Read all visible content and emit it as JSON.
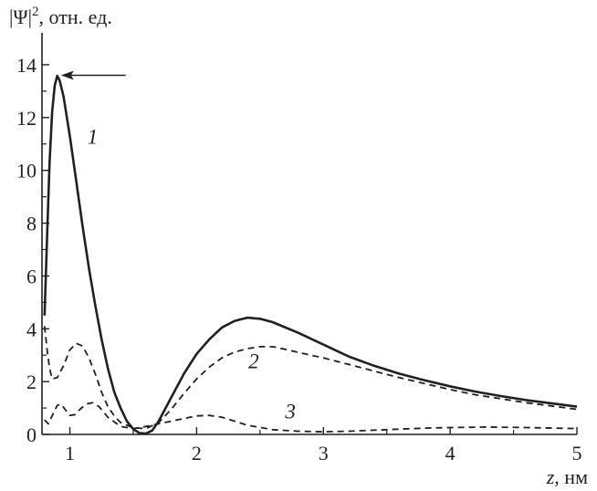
{
  "chart_data": {
    "type": "line",
    "ylabel": {
      "main": "|Ψ|",
      "sup": "2",
      "rest": ", отн. ед."
    },
    "xlabel": {
      "var": "z",
      "rest": ", нм"
    },
    "xlim": [
      0.78,
      5.0
    ],
    "ylim": [
      0,
      15
    ],
    "x_ticks": [
      1,
      2,
      3,
      4,
      5
    ],
    "y_ticks": [
      0,
      2,
      4,
      6,
      8,
      10,
      12,
      14
    ],
    "grid": false,
    "legend": "none",
    "annotations": [
      {
        "text": "1",
        "x": 1.18,
        "y": 11.0
      },
      {
        "text": "2",
        "x": 2.45,
        "y": 2.5
      },
      {
        "text": "3",
        "x": 2.74,
        "y": 0.6
      }
    ],
    "arrow": {
      "x_from": 1.44,
      "x_to": 0.93,
      "y": 13.6
    },
    "series": [
      {
        "label": "1",
        "style": "solid",
        "points": [
          [
            0.8,
            4.5
          ],
          [
            0.82,
            7.5
          ],
          [
            0.84,
            10.3
          ],
          [
            0.86,
            12.2
          ],
          [
            0.88,
            13.2
          ],
          [
            0.9,
            13.58
          ],
          [
            0.92,
            13.4
          ],
          [
            0.95,
            12.8
          ],
          [
            1.0,
            11.3
          ],
          [
            1.05,
            9.6
          ],
          [
            1.1,
            7.9
          ],
          [
            1.15,
            6.3
          ],
          [
            1.2,
            4.9
          ],
          [
            1.25,
            3.6
          ],
          [
            1.3,
            2.5
          ],
          [
            1.35,
            1.6
          ],
          [
            1.4,
            1.0
          ],
          [
            1.45,
            0.5
          ],
          [
            1.5,
            0.2
          ],
          [
            1.55,
            0.05
          ],
          [
            1.6,
            0.03
          ],
          [
            1.65,
            0.15
          ],
          [
            1.7,
            0.5
          ],
          [
            1.8,
            1.4
          ],
          [
            1.9,
            2.3
          ],
          [
            2.0,
            3.05
          ],
          [
            2.1,
            3.6
          ],
          [
            2.2,
            4.05
          ],
          [
            2.3,
            4.3
          ],
          [
            2.4,
            4.42
          ],
          [
            2.5,
            4.38
          ],
          [
            2.6,
            4.25
          ],
          [
            2.8,
            3.85
          ],
          [
            3.0,
            3.4
          ],
          [
            3.2,
            2.95
          ],
          [
            3.4,
            2.6
          ],
          [
            3.6,
            2.3
          ],
          [
            3.8,
            2.05
          ],
          [
            4.0,
            1.82
          ],
          [
            4.2,
            1.62
          ],
          [
            4.4,
            1.45
          ],
          [
            4.6,
            1.3
          ],
          [
            4.8,
            1.18
          ],
          [
            5.0,
            1.05
          ]
        ]
      },
      {
        "label": "2",
        "style": "dashed",
        "points": [
          [
            0.8,
            4.1
          ],
          [
            0.82,
            3.2
          ],
          [
            0.84,
            2.5
          ],
          [
            0.86,
            2.1
          ],
          [
            0.9,
            2.15
          ],
          [
            0.95,
            2.6
          ],
          [
            1.0,
            3.2
          ],
          [
            1.05,
            3.45
          ],
          [
            1.1,
            3.35
          ],
          [
            1.15,
            2.9
          ],
          [
            1.2,
            2.3
          ],
          [
            1.25,
            1.6
          ],
          [
            1.3,
            1.05
          ],
          [
            1.35,
            0.7
          ],
          [
            1.4,
            0.45
          ],
          [
            1.5,
            0.25
          ],
          [
            1.6,
            0.22
          ],
          [
            1.7,
            0.45
          ],
          [
            1.8,
            0.95
          ],
          [
            1.9,
            1.55
          ],
          [
            2.0,
            2.1
          ],
          [
            2.1,
            2.55
          ],
          [
            2.2,
            2.9
          ],
          [
            2.3,
            3.12
          ],
          [
            2.4,
            3.25
          ],
          [
            2.5,
            3.32
          ],
          [
            2.6,
            3.32
          ],
          [
            2.7,
            3.22
          ],
          [
            2.9,
            3.0
          ],
          [
            3.0,
            2.9
          ],
          [
            3.2,
            2.65
          ],
          [
            3.4,
            2.4
          ],
          [
            3.6,
            2.15
          ],
          [
            3.8,
            1.92
          ],
          [
            4.0,
            1.7
          ],
          [
            4.2,
            1.5
          ],
          [
            4.4,
            1.35
          ],
          [
            4.6,
            1.2
          ],
          [
            4.8,
            1.08
          ],
          [
            5.0,
            0.95
          ]
        ]
      },
      {
        "label": "3",
        "style": "dashed",
        "points": [
          [
            0.8,
            0.55
          ],
          [
            0.83,
            0.4
          ],
          [
            0.86,
            0.7
          ],
          [
            0.9,
            1.1
          ],
          [
            0.93,
            1.15
          ],
          [
            0.97,
            0.9
          ],
          [
            1.0,
            0.72
          ],
          [
            1.04,
            0.75
          ],
          [
            1.08,
            0.95
          ],
          [
            1.13,
            1.15
          ],
          [
            1.18,
            1.2
          ],
          [
            1.23,
            1.05
          ],
          [
            1.3,
            0.65
          ],
          [
            1.4,
            0.3
          ],
          [
            1.5,
            0.22
          ],
          [
            1.6,
            0.3
          ],
          [
            1.7,
            0.4
          ],
          [
            1.8,
            0.5
          ],
          [
            1.9,
            0.6
          ],
          [
            2.0,
            0.7
          ],
          [
            2.1,
            0.72
          ],
          [
            2.2,
            0.65
          ],
          [
            2.3,
            0.5
          ],
          [
            2.4,
            0.35
          ],
          [
            2.6,
            0.18
          ],
          [
            2.8,
            0.12
          ],
          [
            3.0,
            0.1
          ],
          [
            3.2,
            0.12
          ],
          [
            3.5,
            0.18
          ],
          [
            3.8,
            0.24
          ],
          [
            4.0,
            0.26
          ],
          [
            4.3,
            0.28
          ],
          [
            4.6,
            0.26
          ],
          [
            5.0,
            0.22
          ]
        ]
      }
    ]
  }
}
